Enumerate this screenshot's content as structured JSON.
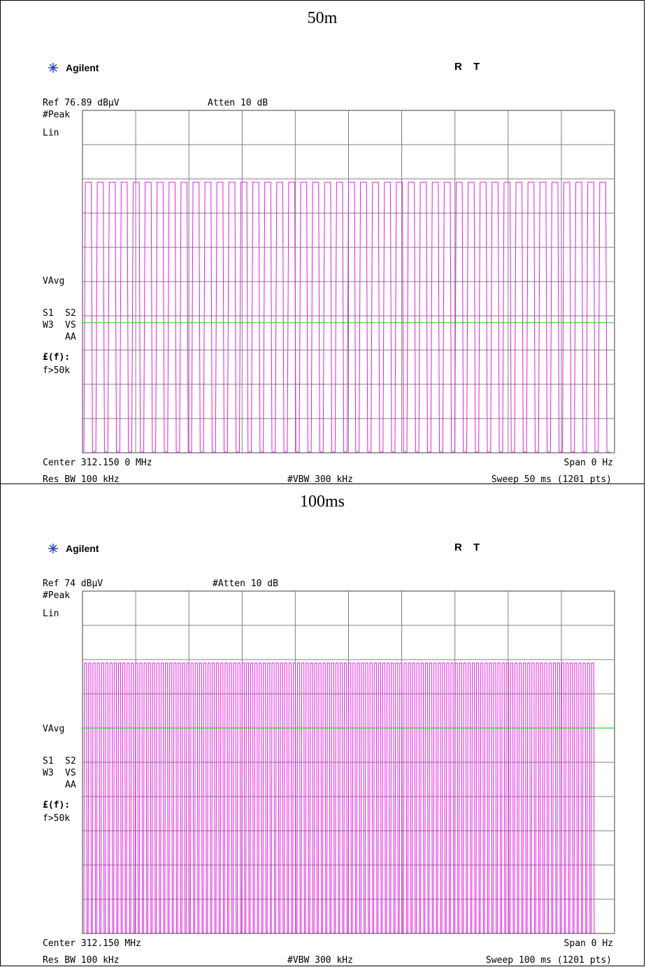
{
  "chart_data": [
    {
      "type": "line",
      "title": "50m",
      "brand": "Agilent",
      "status": [
        "R",
        "T"
      ],
      "ref_level": "Ref 76.89 dBµV",
      "atten": "Atten 10 dB",
      "detector": "#Peak",
      "scale": "Lin",
      "avg_label": "VAvg",
      "side_labels": {
        "s1": "S1",
        "s2": "S2",
        "w3": "W3",
        "vs": "VS",
        "aa": "AA",
        "ff": "£(f):",
        "f50k": "f>50k"
      },
      "center": "Center 312.150 0 MHz",
      "span": "Span 0 Hz",
      "rbw": "Res BW 100 kHz",
      "vbw": "#VBW 300 kHz",
      "sweep": "Sweep 50 ms (1201 pts)",
      "x_range_ms": [
        0,
        50
      ],
      "y_fraction_range": [
        0,
        1
      ],
      "pulse_high_fraction": 0.79,
      "pulse_low_fraction": 0.0,
      "display_line_fraction": 0.38,
      "pulse_count": 44,
      "trace_end_ms": 49.6,
      "grid": true,
      "trace_color": "#E020E0",
      "display_line_color": "#33CC33",
      "grid_color": "#808080"
    },
    {
      "type": "line",
      "title": "100ms",
      "brand": "Agilent",
      "status": [
        "R",
        "T"
      ],
      "ref_level": "Ref 74 dBµV",
      "atten": "#Atten 10 dB",
      "detector": "#Peak",
      "scale": "Lin",
      "avg_label": "VAvg",
      "side_labels": {
        "s1": "S1",
        "s2": "S2",
        "w3": "W3",
        "vs": "VS",
        "aa": "AA",
        "ff": "£(f):",
        "f50k": "f>50k"
      },
      "center": "Center 312.150 MHz",
      "span": "Span 0 Hz",
      "rbw": "Res BW 100 kHz",
      "vbw": "#VBW 300 kHz",
      "sweep": "Sweep 100 ms (1201 pts)",
      "x_range_ms": [
        0,
        100
      ],
      "y_fraction_range": [
        0,
        1
      ],
      "pulse_high_fraction": 0.79,
      "pulse_low_fraction": 0.0,
      "display_line_fraction": 0.6,
      "pulse_count": 120,
      "trace_end_ms": 96.4,
      "grid": true,
      "trace_color": "#E020E0",
      "display_line_color": "#33CC33",
      "grid_color": "#808080"
    }
  ]
}
